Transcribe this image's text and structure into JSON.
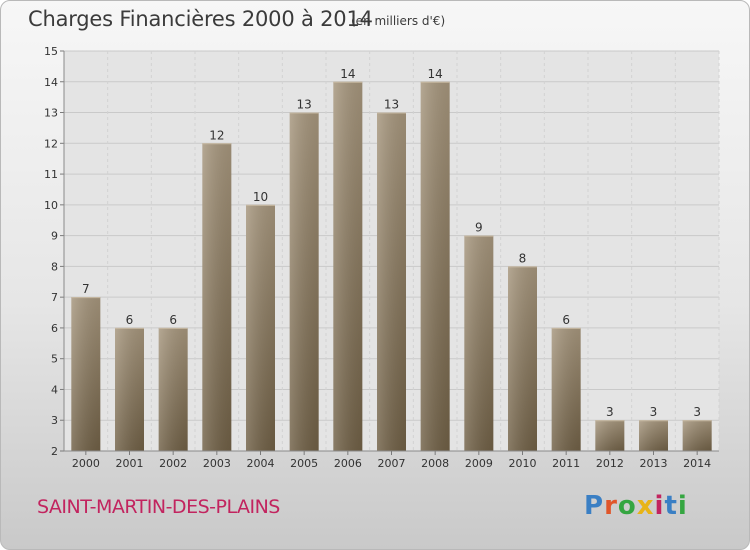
{
  "header": {
    "title": "Charges Financières 2000 à 2014",
    "subtitle": "(en milliers d'€)"
  },
  "footer": {
    "commune": "SAINT-MARTIN-DES-PLAINS",
    "logo_text": "Proxiti",
    "logo_colors": [
      "#3a7fc4",
      "#e0562a",
      "#35a641",
      "#e8b416",
      "#c2245f",
      "#3a7fc4",
      "#35a641"
    ]
  },
  "chart_data": {
    "type": "bar",
    "title": "Charges Financières 2000 à 2014",
    "subtitle": "(en milliers d'€)",
    "categories": [
      "2000",
      "2001",
      "2002",
      "2003",
      "2004",
      "2005",
      "2006",
      "2007",
      "2008",
      "2009",
      "2010",
      "2011",
      "2012",
      "2013",
      "2014"
    ],
    "values": [
      7,
      6,
      6,
      12,
      10,
      13,
      14,
      13,
      14,
      9,
      8,
      6,
      3,
      3,
      3
    ],
    "ylim": [
      2,
      15
    ],
    "yticks": [
      2,
      3,
      4,
      5,
      6,
      7,
      8,
      9,
      10,
      11,
      12,
      13,
      14,
      15
    ],
    "grid": true,
    "bar_color": "#8f7f66"
  }
}
